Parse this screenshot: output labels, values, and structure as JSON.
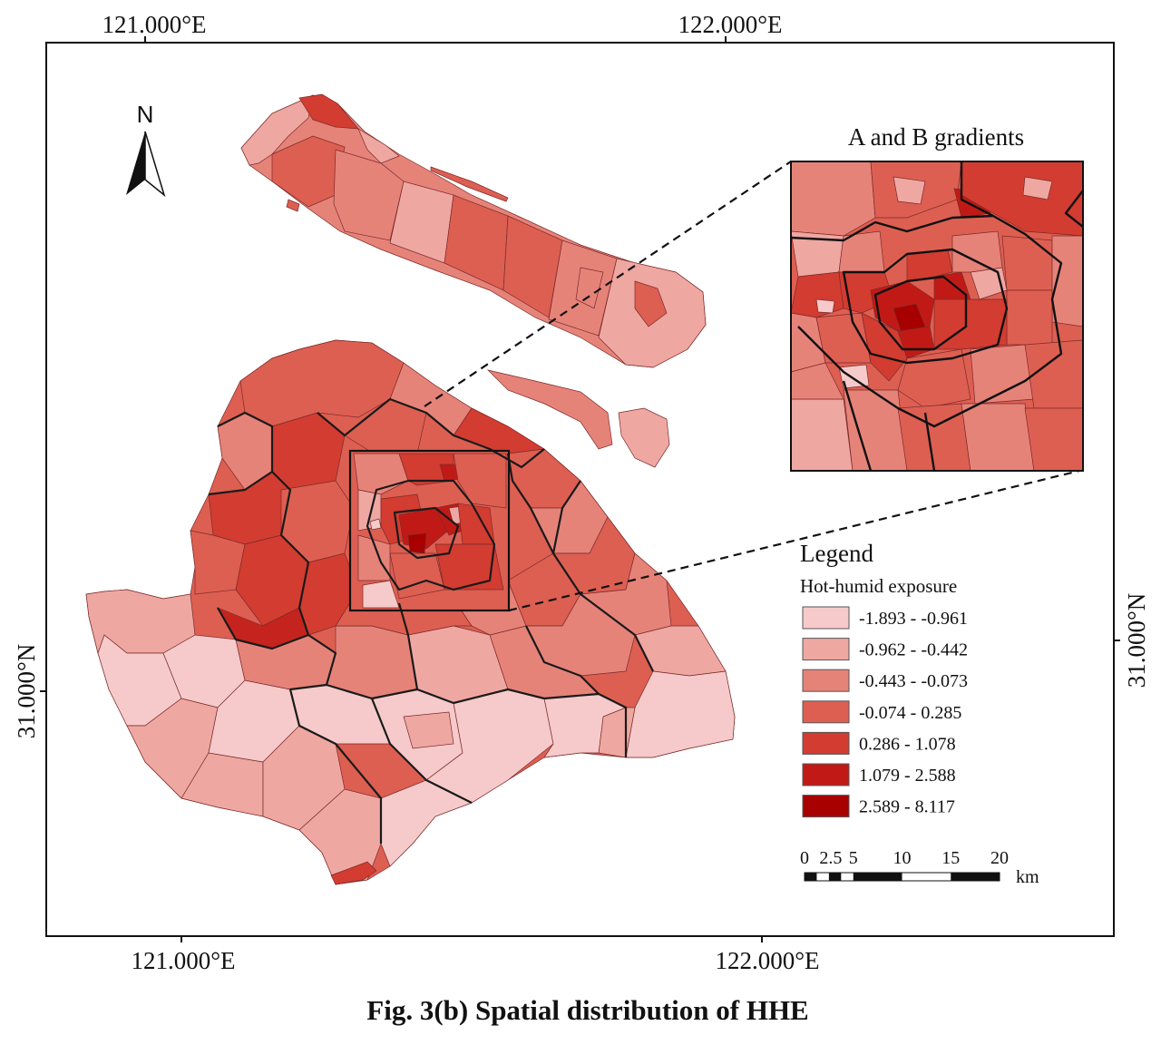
{
  "map": {
    "top_axis": {
      "left": "121.000°E",
      "right": "122.000°E"
    },
    "bottom_axis": {
      "left": "121.000°E",
      "right": "122.000°E"
    },
    "left_axis": "31.000°N",
    "right_axis": "31.000°N",
    "north_label": "N",
    "inset_title": "A and B gradients"
  },
  "legend": {
    "title": "Legend",
    "subtitle": "Hot-humid exposure",
    "items": [
      {
        "label": "-1.893 - -0.961",
        "color": "#f6caca"
      },
      {
        "label": "-0.962 - -0.442",
        "color": "#efa7a2"
      },
      {
        "label": "-0.443 - -0.073",
        "color": "#e68379"
      },
      {
        "label": "-0.074 - 0.285",
        "color": "#dd5f52"
      },
      {
        "label": "0.286 - 1.078",
        "color": "#d33c31"
      },
      {
        "label": "1.079 - 2.588",
        "color": "#c11a16"
      },
      {
        "label": "2.589 - 8.117",
        "color": "#a80000"
      }
    ]
  },
  "scale_bar": {
    "ticks": [
      "0",
      "2.5",
      "5",
      "10",
      "15",
      "20"
    ],
    "unit": "km"
  },
  "caption": "Fig. 3(b) Spatial distribution of HHE"
}
